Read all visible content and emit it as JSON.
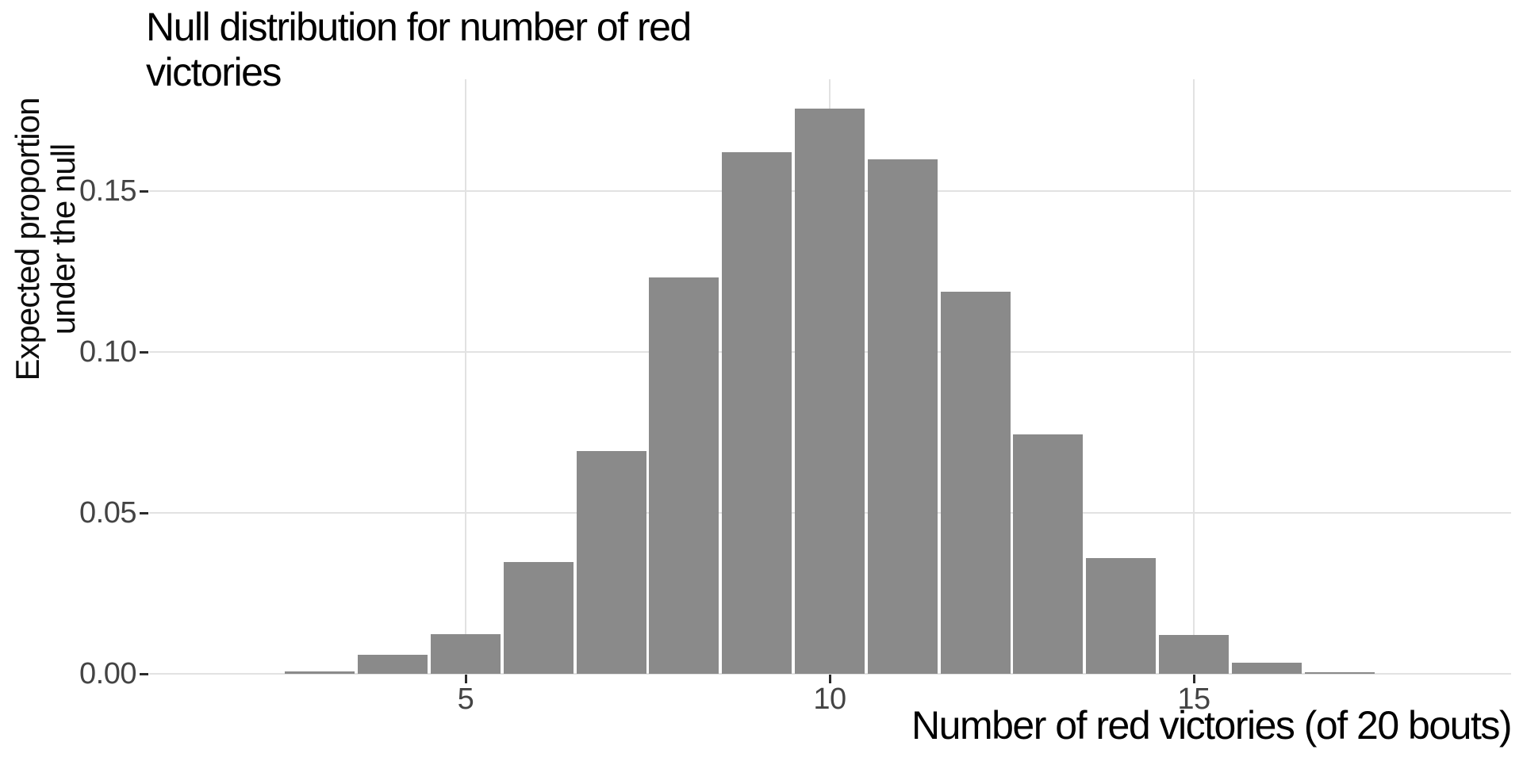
{
  "title": {
    "text": "Null distribution for number of red victories",
    "lines": [
      "Null distribution for number of red",
      "victories"
    ]
  },
  "axes": {
    "y": {
      "label": "Expected proportion under the null",
      "label_lines": [
        "Expected proportion",
        "under the null"
      ],
      "tick_labels": [
        "0.00",
        "0.05",
        "0.10",
        "0.15"
      ],
      "tick_values": [
        0,
        0.05,
        0.1,
        0.15
      ]
    },
    "x": {
      "label": "Number of red victories (of 20 bouts)",
      "tick_labels": [
        "5",
        "10",
        "15"
      ],
      "tick_values": [
        5,
        10,
        15
      ]
    }
  },
  "colors": {
    "background": "#ffffff",
    "bar_fill": "#8a8a8a",
    "gridline": "#e2e2e2",
    "tick_mark": "#2b2b2b",
    "tick_label": "#444444",
    "title_text": "#000000"
  },
  "chart_data": {
    "type": "bar",
    "title": "Null distribution for number of red victories",
    "xlabel": "Number of red victories (of 20 bouts)",
    "ylabel": "Expected proportion under the null",
    "x": [
      3,
      4,
      5,
      6,
      7,
      8,
      9,
      10,
      11,
      12,
      13,
      14,
      15,
      16,
      17
    ],
    "values": [
      0.0007,
      0.006,
      0.0123,
      0.0347,
      0.0692,
      0.1232,
      0.1621,
      0.1756,
      0.1599,
      0.1187,
      0.0744,
      0.036,
      0.0121,
      0.0034,
      0.0006
    ],
    "xlim": [
      0.65,
      19.35
    ],
    "ylim": [
      0,
      0.185
    ],
    "x_ticks": [
      5,
      10,
      15
    ],
    "y_ticks": [
      0,
      0.05,
      0.1,
      0.15
    ],
    "grid": "major gridlines only, light gray, white panel background",
    "legend": "none",
    "bar_relative_width": 0.96
  }
}
